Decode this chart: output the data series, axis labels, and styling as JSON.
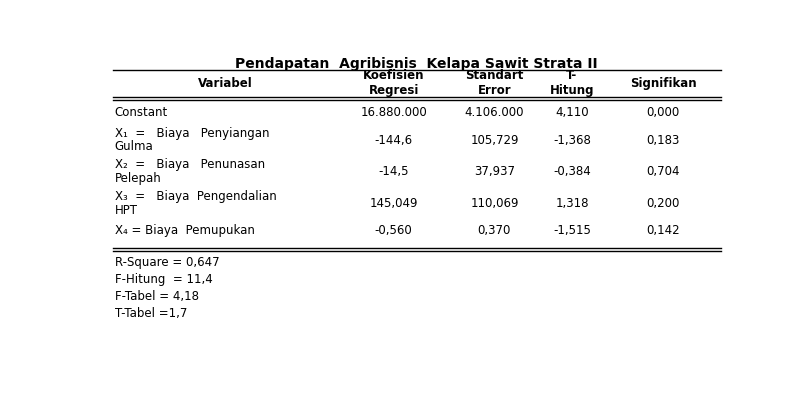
{
  "title": "Pendapatan  Agribisnis  Kelapa Sawit Strata II",
  "col_headers": [
    "Variabel",
    "Koefisien\nRegresi",
    "Standart\nError",
    "T-\nHitung",
    "Signifikan"
  ],
  "rows_line1": [
    "Constant",
    "X₁  =   Biaya   Penyiangan",
    "X₂  =   Biaya   Penunasan",
    "X₃  =   Biaya  Pengendalian",
    "X₄ = Biaya  Pemupukan"
  ],
  "rows_line2": [
    "",
    "Gulma",
    "Pelepah",
    "HPT",
    ""
  ],
  "rows_data": [
    [
      "16.880.000",
      "4.106.000",
      "4,110",
      "0,000"
    ],
    [
      "-144,6",
      "105,729",
      "-1,368",
      "0,183"
    ],
    [
      "-14,5",
      "37,937",
      "-0,384",
      "0,704"
    ],
    [
      "145,049",
      "110,069",
      "1,318",
      "0,200"
    ],
    [
      "-0,560",
      "0,370",
      "-1,515",
      "0,142"
    ]
  ],
  "footer": [
    "R-Square = 0,647",
    "F-Hitung  = 11,4",
    "F-Tabel = 4,18",
    "T-Tabel =1,7"
  ],
  "bg_color": "#ffffff",
  "text_color": "#000000",
  "font_size": 8.5,
  "title_font_size": 10.0
}
